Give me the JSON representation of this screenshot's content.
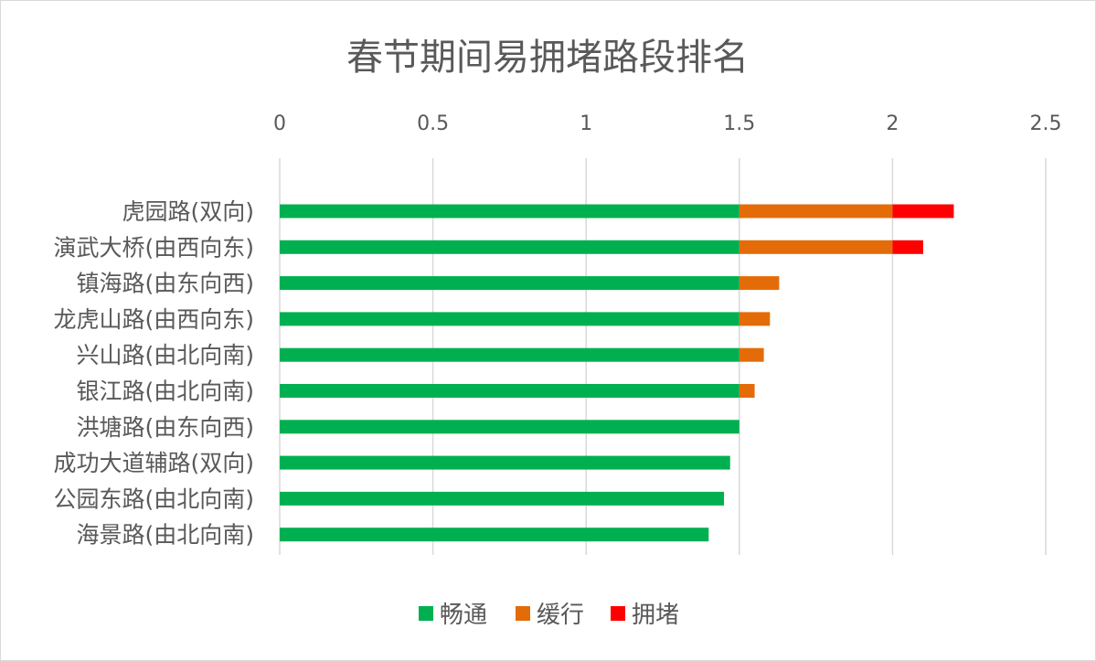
{
  "chart_data": {
    "type": "bar",
    "orientation": "horizontal",
    "stacked": true,
    "title": "春节期间易拥堵路段排名",
    "xlabel": "",
    "ylabel": "",
    "xlim": [
      0,
      2.5
    ],
    "x_ticks": [
      "0",
      "0.5",
      "1",
      "1.5",
      "2",
      "2.5"
    ],
    "x_axis_position": "top",
    "grid": true,
    "legend_position": "bottom",
    "categories": [
      "虎园路(双向)",
      "演武大桥(由西向东)",
      "镇海路(由东向西)",
      "龙虎山路(由西向东)",
      "兴山路(由北向南)",
      "银江路(由北向南)",
      "洪塘路(由东向西)",
      "成功大道辅路(双向)",
      "公园东路(由北向南)",
      "海景路(由北向南)"
    ],
    "series": [
      {
        "name": "畅通",
        "color": "#00b050",
        "values": [
          1.5,
          1.5,
          1.5,
          1.5,
          1.5,
          1.5,
          1.5,
          1.47,
          1.45,
          1.4
        ]
      },
      {
        "name": "缓行",
        "color": "#e36c09",
        "values": [
          0.5,
          0.5,
          0.13,
          0.1,
          0.08,
          0.05,
          0,
          0,
          0,
          0
        ]
      },
      {
        "name": "拥堵",
        "color": "#ff0000",
        "values": [
          0.2,
          0.1,
          0,
          0,
          0,
          0,
          0,
          0,
          0,
          0
        ]
      }
    ]
  }
}
